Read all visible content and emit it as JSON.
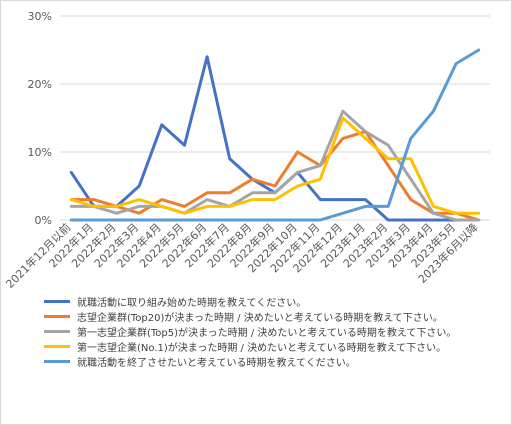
{
  "chart_data": {
    "type": "line",
    "categories": [
      "2021年12月以前",
      "2022年1月",
      "2022年2月",
      "2022年3月",
      "2022年4月",
      "2022年5月",
      "2022年6月",
      "2022年7月",
      "2022年8月",
      "2022年9月",
      "2022年10月",
      "2022年11月",
      "2022年12月",
      "2023年1月",
      "2023年2月",
      "2023年3月",
      "2023年4月",
      "2023年5月",
      "2023年6月以降"
    ],
    "x_tick_labels": [
      "2021年12月以前",
      "2022年1月",
      "2022年2月",
      "2022年3月",
      "2022年4月",
      "2022年5月",
      "2022年6月",
      "2022年7月",
      "2022年8月",
      "2022年9月",
      "2022年10月",
      "2022年11月",
      "2022年12月",
      "2023年1月",
      "2023年2月",
      "2023年3月",
      "2023年4月",
      "2023年5月",
      "2023年6月以降"
    ],
    "y_ticks": [
      0,
      10,
      20,
      30
    ],
    "y_tick_labels": [
      "0%",
      "10%",
      "20%",
      "30%"
    ],
    "ylim": [
      0,
      30
    ],
    "grid": "horizontal",
    "legend_position": "bottom",
    "series": [
      {
        "name": "就職活動に取り組み始めた時期を教えてください。",
        "color": "#4472c4",
        "values": [
          7,
          2,
          2,
          5,
          14,
          11,
          24,
          9,
          6,
          4,
          7,
          3,
          3,
          3,
          0,
          0,
          0,
          0,
          0
        ]
      },
      {
        "name": "志望企業群(Top20)が決まった時期 / 決めたいと考えている時期を教えて下さい。",
        "color": "#ed7d31",
        "values": [
          3,
          3,
          2,
          1,
          3,
          2,
          4,
          4,
          6,
          5,
          10,
          8,
          12,
          13,
          8,
          3,
          1,
          1,
          0
        ]
      },
      {
        "name": "第一志望企業群(Top5)が決まった時期 / 決めたいと考えている時期を教えて下さい。",
        "color": "#a5a5a5",
        "values": [
          2,
          2,
          1,
          2,
          2,
          1,
          3,
          2,
          4,
          4,
          7,
          8,
          16,
          13,
          11,
          6,
          1,
          0,
          0
        ]
      },
      {
        "name": "第一志望企業(No.1)が決まった時期 / 決めたいと考えている時期を教えて下さい。",
        "color": "#ffc000",
        "values": [
          3,
          2,
          2,
          3,
          2,
          1,
          2,
          2,
          3,
          3,
          5,
          6,
          15,
          12,
          9,
          9,
          2,
          1,
          1
        ]
      },
      {
        "name": "就職活動を終了させたいと考えている時期を教えてください。",
        "color": "#5b9bd5",
        "values": [
          0,
          0,
          0,
          0,
          0,
          0,
          0,
          0,
          0,
          0,
          0,
          0,
          1,
          2,
          2,
          12,
          16,
          23,
          25
        ]
      }
    ]
  }
}
